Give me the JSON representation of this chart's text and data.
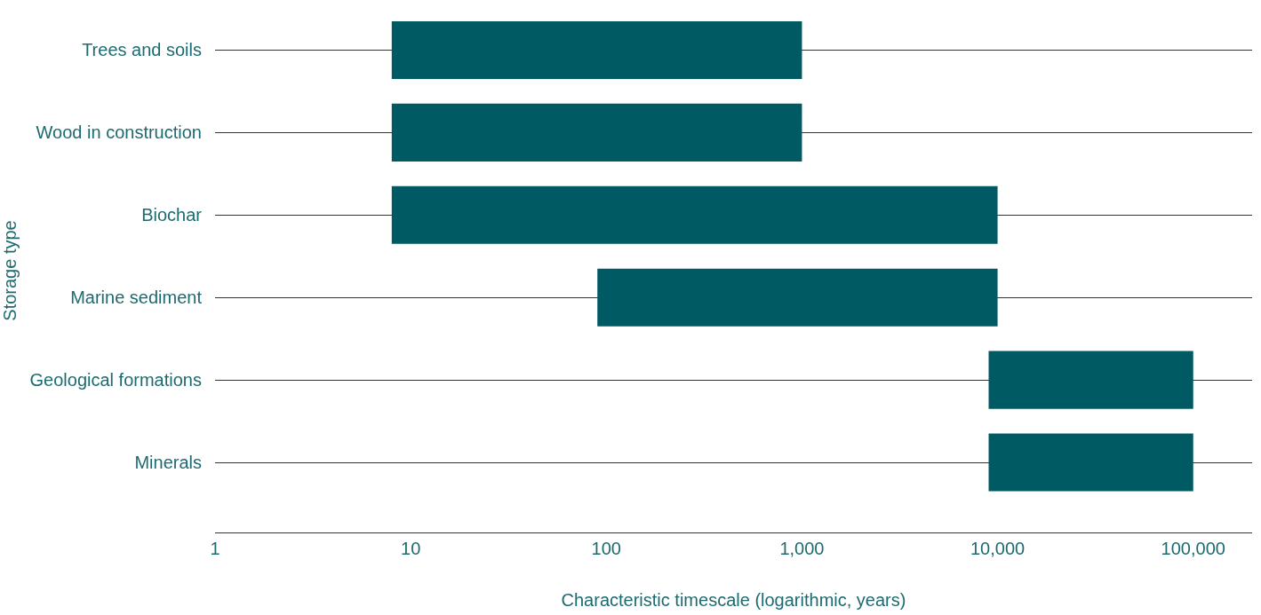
{
  "chart_data": {
    "type": "bar",
    "orientation": "horizontal",
    "log": "x",
    "xlabel": "Characteristic timescale (logarithmic, years)",
    "ylabel": "Storage type",
    "categories": [
      "Trees and soils",
      "Wood in construction",
      "Biochar",
      "Marine sediment",
      "Geological formations",
      "Minerals"
    ],
    "base": [
      8,
      8,
      8,
      90,
      9000,
      9000
    ],
    "values": [
      992,
      992,
      9992,
      9910,
      91000,
      91000
    ],
    "color": "#005a64",
    "xlim": [
      1,
      200000
    ],
    "xticks": [
      1,
      10,
      100,
      {
        "value": 1000,
        "label": "1,000"
      },
      {
        "value": 10000,
        "label": "10,000"
      },
      {
        "value": 100000,
        "label": "100,000"
      }
    ],
    "grid": "y",
    "legend": false
  }
}
